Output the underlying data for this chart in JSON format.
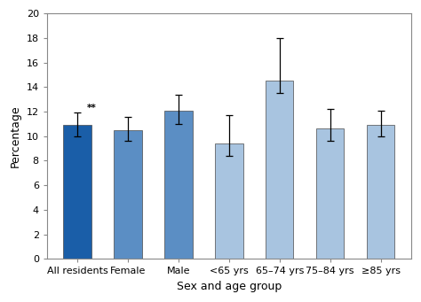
{
  "categories": [
    "All residents",
    "Female",
    "Male",
    "<65 yrs",
    "65–74 yrs",
    "75–84 yrs",
    "≥85 yrs"
  ],
  "values": [
    10.9,
    10.5,
    12.1,
    9.4,
    14.5,
    10.6,
    10.9
  ],
  "error_low": [
    10.0,
    9.6,
    11.0,
    8.4,
    13.5,
    9.6,
    10.0
  ],
  "error_high": [
    11.9,
    11.6,
    13.4,
    11.7,
    18.0,
    12.2,
    12.1
  ],
  "bar_colors": [
    "#1a5ea8",
    "#5b8ec4",
    "#5b8ec4",
    "#a8c4e0",
    "#a8c4e0",
    "#a8c4e0",
    "#a8c4e0"
  ],
  "bar_edge_colors": [
    "#4a4a4a",
    "#4a4a4a",
    "#4a4a4a",
    "#4a4a4a",
    "#4a4a4a",
    "#4a4a4a",
    "#4a4a4a"
  ],
  "annotation": "**",
  "annotation_bar_index": 0,
  "xlabel": "Sex and age group",
  "ylabel": "Percentage",
  "ylim": [
    0,
    20
  ],
  "yticks": [
    0,
    2,
    4,
    6,
    8,
    10,
    12,
    14,
    16,
    18,
    20
  ],
  "axis_fontsize": 9,
  "tick_fontsize": 8,
  "background_color": "#ffffff",
  "error_cap_size": 3,
  "bar_width": 0.55
}
